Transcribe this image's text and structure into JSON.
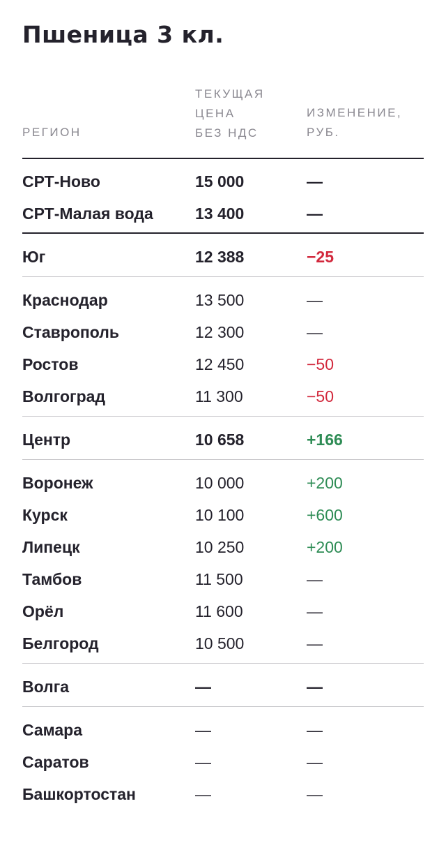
{
  "title": "Пшеница 3 кл.",
  "headers": {
    "region": "РЕГИОН",
    "price_line1": "ТЕКУЩАЯ",
    "price_line2": "ЦЕНА",
    "price_line3": "БЕЗ НДС",
    "change_line1": "ИЗМЕНЕНИЕ,",
    "change_line2": "РУБ."
  },
  "rows": [
    {
      "region": "СРТ-Ново",
      "price": "15 000",
      "change": "—"
    },
    {
      "region": "СРТ-Малая вода",
      "price": "13 400",
      "change": "—"
    },
    {
      "region": "Юг",
      "price": "12 388",
      "change": "−25"
    },
    {
      "region": "Краснодар",
      "price": "13 500",
      "change": "—"
    },
    {
      "region": "Ставрополь",
      "price": "12 300",
      "change": "—"
    },
    {
      "region": "Ростов",
      "price": "12 450",
      "change": "−50"
    },
    {
      "region": "Волгоград",
      "price": "11 300",
      "change": "−50"
    },
    {
      "region": "Центр",
      "price": "10 658",
      "change": "+166"
    },
    {
      "region": "Воронеж",
      "price": "10 000",
      "change": "+200"
    },
    {
      "region": "Курск",
      "price": "10 100",
      "change": "+600"
    },
    {
      "region": "Липецк",
      "price": "10 250",
      "change": "+200"
    },
    {
      "region": "Тамбов",
      "price": "11 500",
      "change": "—"
    },
    {
      "region": "Орёл",
      "price": "11 600",
      "change": "—"
    },
    {
      "region": "Белгород",
      "price": "10 500",
      "change": "—"
    },
    {
      "region": "Волга",
      "price": "—",
      "change": "—"
    },
    {
      "region": "Самара",
      "price": "—",
      "change": "—"
    },
    {
      "region": "Саратов",
      "price": "—",
      "change": "—"
    },
    {
      "region": "Башкортостан",
      "price": "—",
      "change": "—"
    }
  ],
  "colors": {
    "text": "#24222c",
    "muted": "#8a8890",
    "negative": "#d2283c",
    "positive": "#2e8c55"
  }
}
